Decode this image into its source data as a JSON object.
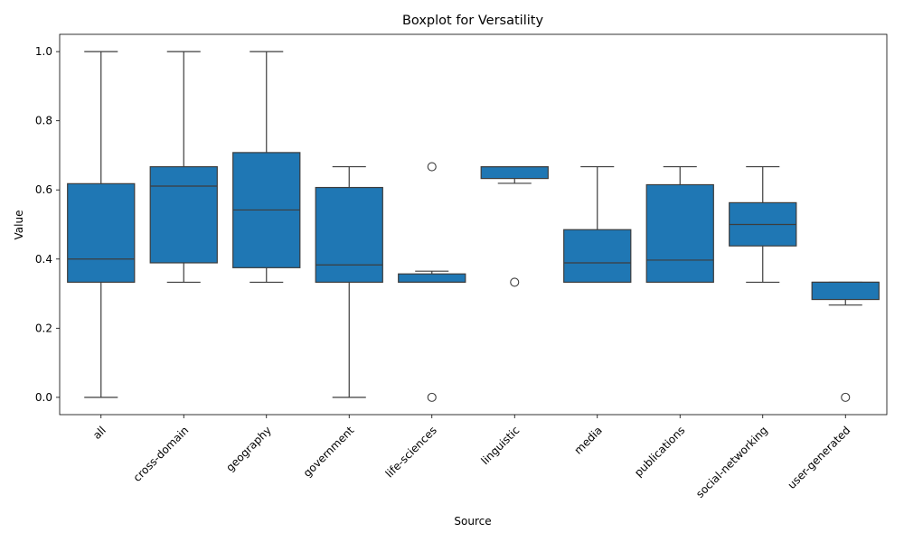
{
  "chart_data": {
    "type": "boxplot",
    "title": "Boxplot for Versatility",
    "xlabel": "Source",
    "ylabel": "Value",
    "ylim": [
      -0.05,
      1.05
    ],
    "yticks": [
      "0.0",
      "0.2",
      "0.4",
      "0.6",
      "0.8",
      "1.0"
    ],
    "ytick_values": [
      0.0,
      0.2,
      0.4,
      0.6,
      0.8,
      1.0
    ],
    "grid": false,
    "box_color": "#1f77b4",
    "line_color": "#3d3d3d",
    "categories": [
      "all",
      "cross-domain",
      "geography",
      "government",
      "life-sciences",
      "linguistic",
      "media",
      "publications",
      "social-networking",
      "user-generated"
    ],
    "boxes": [
      {
        "category": "all",
        "whisker_low": 0.0,
        "q1": 0.333,
        "median": 0.4,
        "q3": 0.618,
        "whisker_high": 1.0,
        "outliers": []
      },
      {
        "category": "cross-domain",
        "whisker_low": 0.333,
        "q1": 0.389,
        "median": 0.611,
        "q3": 0.667,
        "whisker_high": 1.0,
        "outliers": []
      },
      {
        "category": "geography",
        "whisker_low": 0.333,
        "q1": 0.375,
        "median": 0.542,
        "q3": 0.708,
        "whisker_high": 1.0,
        "outliers": []
      },
      {
        "category": "government",
        "whisker_low": 0.0,
        "q1": 0.333,
        "median": 0.383,
        "q3": 0.607,
        "whisker_high": 0.667,
        "outliers": []
      },
      {
        "category": "life-sciences",
        "whisker_low": 0.333,
        "q1": 0.333,
        "median": 0.333,
        "q3": 0.357,
        "whisker_high": 0.365,
        "outliers": [
          0.667,
          0.0
        ]
      },
      {
        "category": "linguistic",
        "whisker_low": 0.619,
        "q1": 0.633,
        "median": 0.667,
        "q3": 0.667,
        "whisker_high": 0.667,
        "outliers": [
          0.333
        ]
      },
      {
        "category": "media",
        "whisker_low": 0.333,
        "q1": 0.333,
        "median": 0.389,
        "q3": 0.485,
        "whisker_high": 0.667,
        "outliers": []
      },
      {
        "category": "publications",
        "whisker_low": 0.333,
        "q1": 0.333,
        "median": 0.397,
        "q3": 0.615,
        "whisker_high": 0.667,
        "outliers": []
      },
      {
        "category": "social-networking",
        "whisker_low": 0.333,
        "q1": 0.438,
        "median": 0.5,
        "q3": 0.563,
        "whisker_high": 0.667,
        "outliers": []
      },
      {
        "category": "user-generated",
        "whisker_low": 0.267,
        "q1": 0.283,
        "median": 0.333,
        "q3": 0.333,
        "whisker_high": 0.333,
        "outliers": [
          0.0
        ]
      }
    ]
  }
}
